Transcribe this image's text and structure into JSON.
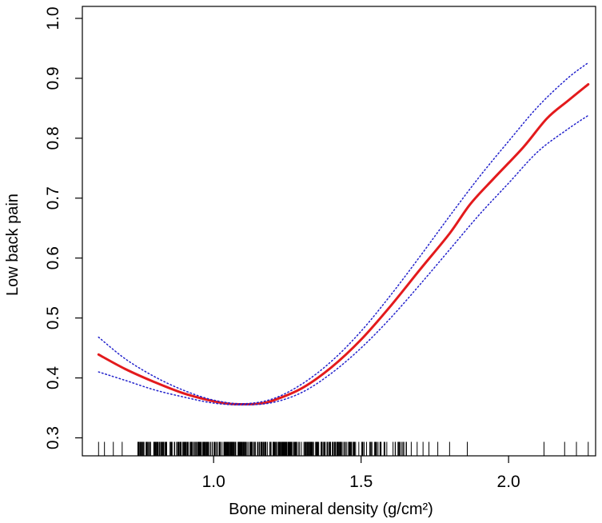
{
  "chart_data": {
    "type": "line",
    "xlabel": "Bone mineral density (g/cm²)",
    "ylabel": "Low back pain",
    "xlim": [
      0.555,
      2.295
    ],
    "ylim": [
      0.27,
      1.02
    ],
    "x_ticks": [
      1.0,
      1.5,
      2.0
    ],
    "x_tick_labels": [
      "1.0",
      "1.5",
      "2.0"
    ],
    "y_ticks": [
      0.3,
      0.4,
      0.5,
      0.6,
      0.7,
      0.8,
      0.9,
      1.0
    ],
    "y_tick_labels": [
      "0.3",
      "0.4",
      "0.5",
      "0.6",
      "0.7",
      "0.8",
      "0.9",
      "1.0"
    ],
    "grid": false,
    "colors": {
      "fit": "#e31a1c",
      "ci": "#2222cc",
      "rug": "#000000",
      "frame": "#000000"
    },
    "series": [
      {
        "role": "fit",
        "x": [
          0.61,
          0.7,
          0.8,
          0.9,
          1.0,
          1.05,
          1.1,
          1.15,
          1.2,
          1.3,
          1.4,
          1.5,
          1.6,
          1.7,
          1.8,
          1.87,
          1.95,
          2.05,
          2.13,
          2.2,
          2.27
        ],
        "y": [
          0.439,
          0.415,
          0.393,
          0.374,
          0.361,
          0.357,
          0.356,
          0.357,
          0.362,
          0.383,
          0.418,
          0.464,
          0.52,
          0.581,
          0.641,
          0.69,
          0.733,
          0.785,
          0.833,
          0.862,
          0.89
        ]
      },
      {
        "role": "ci-upper",
        "x": [
          0.61,
          0.7,
          0.8,
          0.9,
          1.0,
          1.1,
          1.2,
          1.3,
          1.4,
          1.5,
          1.6,
          1.7,
          1.8,
          1.9,
          2.0,
          2.1,
          2.2,
          2.27
        ],
        "y": [
          0.468,
          0.432,
          0.402,
          0.379,
          0.363,
          0.357,
          0.365,
          0.39,
          0.428,
          0.478,
          0.538,
          0.603,
          0.67,
          0.735,
          0.795,
          0.853,
          0.9,
          0.926
        ]
      },
      {
        "role": "ci-lower",
        "x": [
          0.61,
          0.7,
          0.8,
          0.9,
          1.0,
          1.1,
          1.2,
          1.3,
          1.4,
          1.5,
          1.6,
          1.7,
          1.8,
          1.9,
          2.0,
          2.1,
          2.2,
          2.27
        ],
        "y": [
          0.41,
          0.396,
          0.38,
          0.368,
          0.358,
          0.355,
          0.359,
          0.376,
          0.408,
          0.45,
          0.5,
          0.556,
          0.614,
          0.672,
          0.725,
          0.778,
          0.815,
          0.838
        ]
      }
    ],
    "rug_dense_range": [
      0.74,
      1.48
    ],
    "rug_medium_range": [
      1.48,
      1.66
    ],
    "rug_sparse": [
      0.61,
      0.63,
      0.66,
      0.69,
      1.67,
      1.69,
      1.71,
      1.73,
      1.76,
      1.8,
      1.86,
      2.12,
      2.19,
      2.23,
      2.27
    ]
  }
}
